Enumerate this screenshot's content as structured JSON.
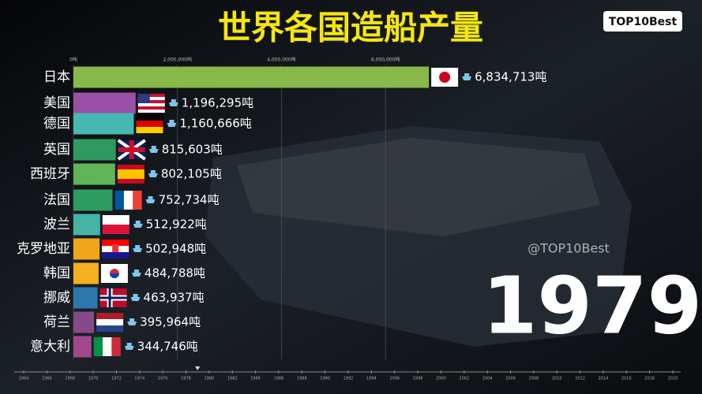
{
  "chart_data": {
    "type": "bar",
    "orientation": "horizontal",
    "title": "世界各国造船产量",
    "watermark": "TOP10Best",
    "credit": "@TOP10Best",
    "year": "1979",
    "categories": [
      "日本",
      "美国",
      "德国",
      "英国",
      "西班牙",
      "法国",
      "波兰",
      "克罗地亚",
      "韩国",
      "挪威",
      "荷兰",
      "意大利"
    ],
    "values": [
      6834713,
      1196295,
      1160666,
      815603,
      802105,
      752734,
      512922,
      502948,
      484788,
      463937,
      395964,
      344746
    ],
    "value_labels": [
      "6,834,713吨",
      "1,196,295吨",
      "1,160,666吨",
      "815,603吨",
      "802,105吨",
      "752,734吨",
      "512,922吨",
      "502,948吨",
      "484,788吨",
      "463,937吨",
      "395,964吨",
      "344,746吨"
    ],
    "colors": [
      "#86b94a",
      "#9a50a6",
      "#46b8b2",
      "#2e9a5e",
      "#62b458",
      "#2d9c60",
      "#44b4a6",
      "#f0a61a",
      "#f4b01e",
      "#2c78ae",
      "#874a88",
      "#a3478e"
    ],
    "xlim": [
      0,
      7000000
    ],
    "xticks": [
      {
        "value": 0,
        "label": "0吨"
      },
      {
        "value": 2000000,
        "label": "2,000,000吨"
      },
      {
        "value": 4000000,
        "label": "4,000,000吨"
      },
      {
        "value": 6000000,
        "label": "6,000,000吨"
      }
    ],
    "grid": true,
    "timeline": [
      1964,
      1966,
      1968,
      1970,
      1972,
      1974,
      1976,
      1978,
      1980,
      1982,
      1984,
      1986,
      1988,
      1990,
      1992,
      1994,
      1996,
      1998,
      2000,
      2002,
      2004,
      2006,
      2008,
      2010,
      2012,
      2014,
      2016,
      2018,
      2020
    ]
  }
}
